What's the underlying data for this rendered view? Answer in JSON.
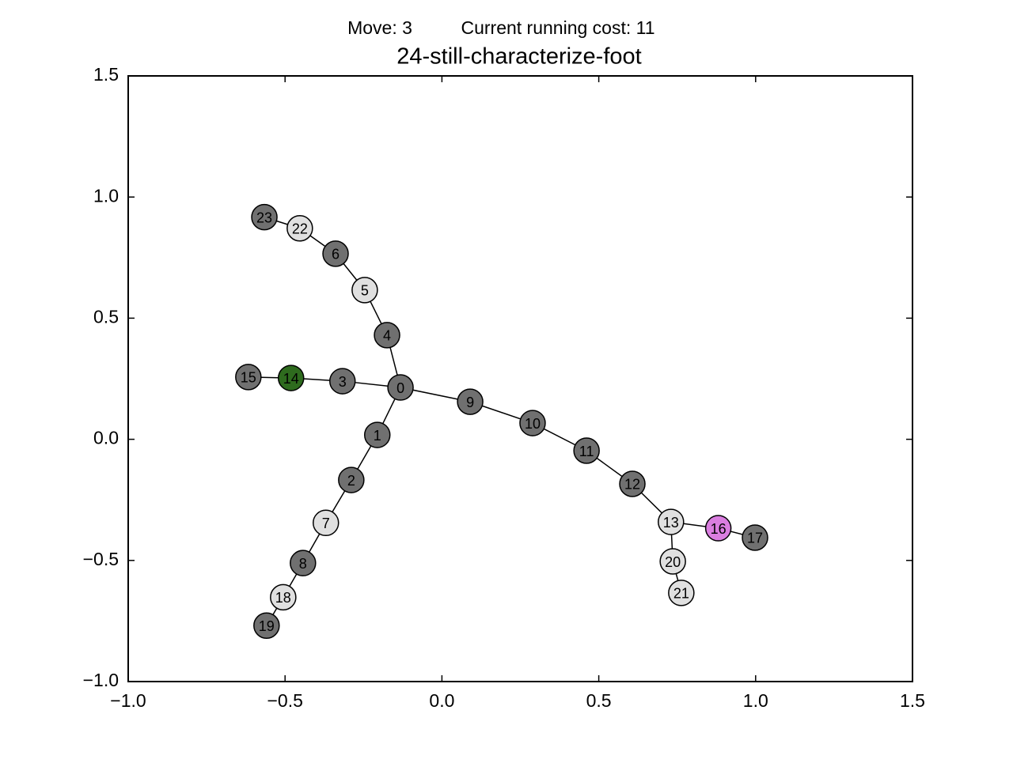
{
  "header": {
    "move": "Move: 3",
    "cost": "Current running cost: 11"
  },
  "chart_data": {
    "type": "graph",
    "title": "24-still-characterize-foot",
    "xlim": [
      -1.0,
      1.5
    ],
    "ylim": [
      -1.0,
      1.5
    ],
    "xticks": [
      {
        "value": -1.0,
        "label": "−1.0"
      },
      {
        "value": -0.5,
        "label": "−0.5"
      },
      {
        "value": 0.0,
        "label": "0.0"
      },
      {
        "value": 0.5,
        "label": "0.5"
      },
      {
        "value": 1.0,
        "label": "1.0"
      },
      {
        "value": 1.5,
        "label": "1.5"
      }
    ],
    "yticks": [
      {
        "value": -1.0,
        "label": "−1.0"
      },
      {
        "value": -0.5,
        "label": "−0.5"
      },
      {
        "value": 0.0,
        "label": "0.0"
      },
      {
        "value": 0.5,
        "label": "0.5"
      },
      {
        "value": 1.0,
        "label": "1.0"
      },
      {
        "value": 1.5,
        "label": "1.5"
      }
    ],
    "nodes": [
      {
        "label": "0",
        "x": -0.132,
        "y": 0.214,
        "color": "#707070"
      },
      {
        "label": "1",
        "x": -0.206,
        "y": 0.018,
        "color": "#707070"
      },
      {
        "label": "2",
        "x": -0.289,
        "y": -0.168,
        "color": "#707070"
      },
      {
        "label": "3",
        "x": -0.317,
        "y": 0.24,
        "color": "#707070"
      },
      {
        "label": "4",
        "x": -0.175,
        "y": 0.43,
        "color": "#707070"
      },
      {
        "label": "5",
        "x": -0.246,
        "y": 0.616,
        "color": "#e0e0e0"
      },
      {
        "label": "6",
        "x": -0.339,
        "y": 0.766,
        "color": "#707070"
      },
      {
        "label": "7",
        "x": -0.37,
        "y": -0.345,
        "color": "#e0e0e0"
      },
      {
        "label": "8",
        "x": -0.443,
        "y": -0.511,
        "color": "#707070"
      },
      {
        "label": "9",
        "x": 0.09,
        "y": 0.155,
        "color": "#707070"
      },
      {
        "label": "10",
        "x": 0.289,
        "y": 0.067,
        "color": "#707070"
      },
      {
        "label": "11",
        "x": 0.461,
        "y": -0.047,
        "color": "#707070"
      },
      {
        "label": "12",
        "x": 0.607,
        "y": -0.184,
        "color": "#707070"
      },
      {
        "label": "13",
        "x": 0.73,
        "y": -0.341,
        "color": "#e0e0e0"
      },
      {
        "label": "14",
        "x": -0.481,
        "y": 0.253,
        "color": "#2e6b1e"
      },
      {
        "label": "15",
        "x": -0.617,
        "y": 0.257,
        "color": "#707070"
      },
      {
        "label": "16",
        "x": 0.881,
        "y": -0.367,
        "color": "#da7ee0"
      },
      {
        "label": "17",
        "x": 0.998,
        "y": -0.406,
        "color": "#707070"
      },
      {
        "label": "18",
        "x": -0.506,
        "y": -0.652,
        "color": "#e0e0e0"
      },
      {
        "label": "19",
        "x": -0.559,
        "y": -0.769,
        "color": "#707070"
      },
      {
        "label": "20",
        "x": 0.736,
        "y": -0.504,
        "color": "#e0e0e0"
      },
      {
        "label": "21",
        "x": 0.763,
        "y": -0.634,
        "color": "#e0e0e0"
      },
      {
        "label": "22",
        "x": -0.453,
        "y": 0.871,
        "color": "#e0e0e0"
      },
      {
        "label": "23",
        "x": -0.566,
        "y": 0.917,
        "color": "#707070"
      }
    ],
    "edges": [
      [
        0,
        1
      ],
      [
        1,
        2
      ],
      [
        2,
        7
      ],
      [
        7,
        8
      ],
      [
        8,
        18
      ],
      [
        18,
        19
      ],
      [
        0,
        3
      ],
      [
        3,
        14
      ],
      [
        14,
        15
      ],
      [
        0,
        4
      ],
      [
        4,
        5
      ],
      [
        5,
        6
      ],
      [
        6,
        22
      ],
      [
        22,
        23
      ],
      [
        0,
        9
      ],
      [
        9,
        10
      ],
      [
        10,
        11
      ],
      [
        11,
        12
      ],
      [
        12,
        13
      ],
      [
        13,
        16
      ],
      [
        16,
        17
      ],
      [
        13,
        20
      ],
      [
        20,
        21
      ]
    ]
  }
}
